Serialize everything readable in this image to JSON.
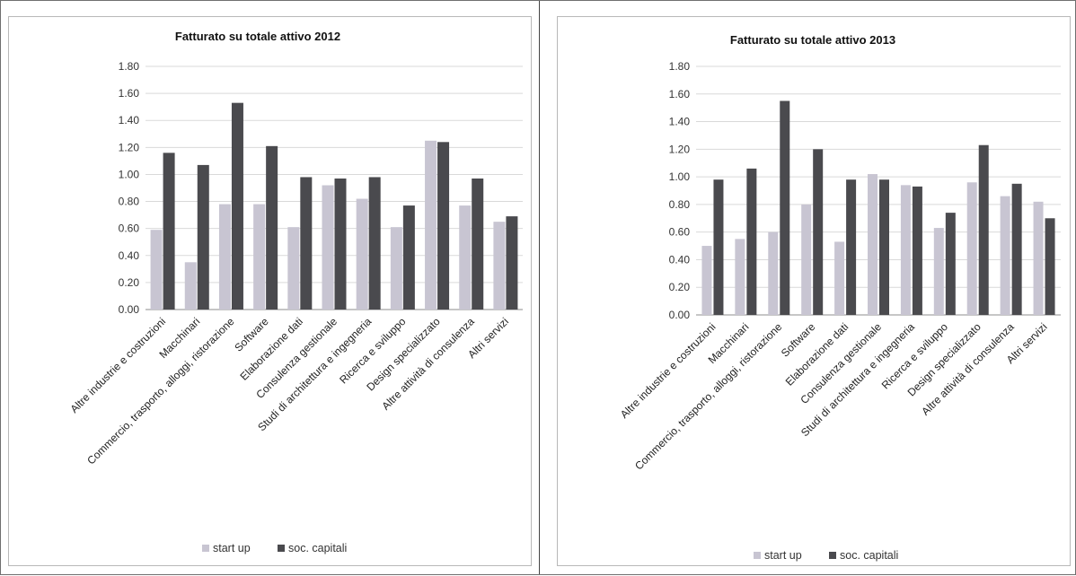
{
  "chart_data": [
    {
      "type": "bar",
      "title": "Fatturato su totale attivo 2012",
      "categories": [
        "Altre industrie e costruzioni",
        "Macchinari",
        "Commercio, trasporto, alloggi, ristorazione",
        "Software",
        "Elaborazione dati",
        "Consulenza gestionale",
        "Studi di architettura e ingegneria",
        "Ricerca e sviluppo",
        "Design specializzato",
        "Altre attività di consulenza",
        "Altri servizi"
      ],
      "series": [
        {
          "name": "start up",
          "values": [
            0.59,
            0.35,
            0.78,
            0.78,
            0.61,
            0.92,
            0.82,
            0.61,
            1.25,
            0.77,
            0.65
          ],
          "color": "#c8c5d2"
        },
        {
          "name": "soc. capitali",
          "values": [
            1.16,
            1.07,
            1.53,
            1.21,
            0.98,
            0.97,
            0.98,
            0.77,
            1.24,
            0.97,
            0.69
          ],
          "color": "#4a4a4e"
        }
      ],
      "yticks": [
        "0.00",
        "0.20",
        "0.40",
        "0.60",
        "0.80",
        "1.00",
        "1.20",
        "1.40",
        "1.60",
        "1.80"
      ],
      "ylim": [
        0,
        1.8
      ],
      "grid": true,
      "legend": "bottom"
    },
    {
      "type": "bar",
      "title": "Fatturato su totale attivo 2013",
      "categories": [
        "Altre industrie e costruzioni",
        "Macchinari",
        "Commercio, trasporto, alloggi, ristorazione",
        "Software",
        "Elaborazione dati",
        "Consulenza gestionale",
        "Studi di architettura e ingegneria",
        "Ricerca e sviluppo",
        "Design specializzato",
        "Altre attività di consulenza",
        "Altri servizi"
      ],
      "series": [
        {
          "name": "start up",
          "values": [
            0.5,
            0.55,
            0.6,
            0.8,
            0.53,
            1.02,
            0.94,
            0.63,
            0.96,
            0.86,
            0.82
          ],
          "color": "#c8c5d2"
        },
        {
          "name": "soc. capitali",
          "values": [
            0.98,
            1.06,
            1.55,
            1.2,
            0.98,
            0.98,
            0.93,
            0.74,
            1.23,
            0.95,
            0.7
          ],
          "color": "#4a4a4e"
        }
      ],
      "yticks": [
        "0.00",
        "0.20",
        "0.40",
        "0.60",
        "0.80",
        "1.00",
        "1.20",
        "1.40",
        "1.60",
        "1.80"
      ],
      "ylim": [
        0,
        1.8
      ],
      "grid": true,
      "legend": "bottom"
    }
  ]
}
